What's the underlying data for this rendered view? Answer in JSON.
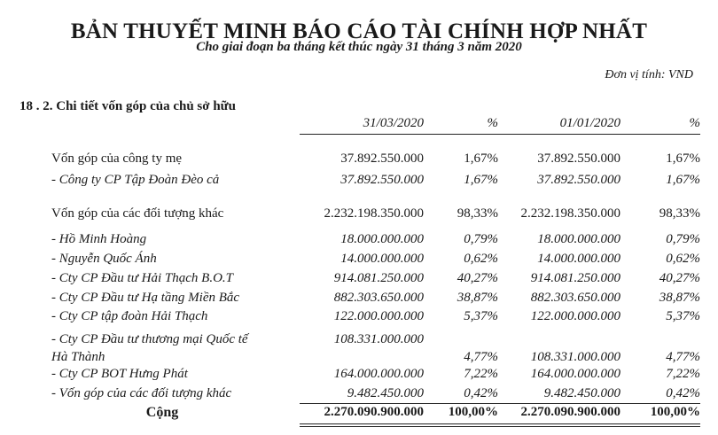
{
  "title": "BẢN THUYẾT MINH BÁO CÁO TÀI CHÍNH HỢP NHẤT",
  "subtitle": "Cho giai đoạn ba tháng kết thúc ngày 31 tháng 3 năm 2020",
  "unit": "Đơn vị tính: VND",
  "section": "18 .  2. Chi tiết vốn góp của chủ sở hữu",
  "headers": {
    "date1": "31/03/2020",
    "pct1": "%",
    "date2": "01/01/2020",
    "pct2": "%"
  },
  "rows": [
    {
      "label": "Vốn góp của công ty mẹ",
      "v1": "37.892.550.000",
      "p1": "1,67%",
      "v2": "37.892.550.000",
      "p2": "1,67%",
      "style": "main"
    },
    {
      "label": "- Công ty CP Tập Đoàn Đèo cả",
      "v1": "37.892.550.000",
      "p1": "1,67%",
      "v2": "37.892.550.000",
      "p2": "1,67%",
      "style": "sub"
    },
    {
      "label": "Vốn góp của các đối tượng khác",
      "v1": "2.232.198.350.000",
      "p1": "98,33%",
      "v2": "2.232.198.350.000",
      "p2": "98,33%",
      "style": "main"
    },
    {
      "label": "- Hồ Minh Hoàng",
      "v1": "18.000.000.000",
      "p1": "0,79%",
      "v2": "18.000.000.000",
      "p2": "0,79%",
      "style": "sub"
    },
    {
      "label": "- Nguyễn Quốc Ánh",
      "v1": "14.000.000.000",
      "p1": "0,62%",
      "v2": "14.000.000.000",
      "p2": "0,62%",
      "style": "sub"
    },
    {
      "label": "- Cty CP Đầu tư Hải Thạch B.O.T",
      "v1": "914.081.250.000",
      "p1": "40,27%",
      "v2": "914.081.250.000",
      "p2": "40,27%",
      "style": "sub"
    },
    {
      "label": "- Cty CP Đầu tư Hạ tầng Miền Bắc",
      "v1": "882.303.650.000",
      "p1": "38,87%",
      "v2": "882.303.650.000",
      "p2": "38,87%",
      "style": "sub"
    },
    {
      "label": "- Cty CP tập đoàn Hải Thạch",
      "v1": "122.000.000.000",
      "p1": "5,37%",
      "v2": "122.000.000.000",
      "p2": "5,37%",
      "style": "sub"
    },
    {
      "label": "- Cty CP Đầu tư thương mại Quốc tế",
      "label2": "Hà Thành",
      "v1": "108.331.000.000",
      "p1": "4,77%",
      "v2": "108.331.000.000",
      "p2": "4,77%",
      "style": "sub2"
    },
    {
      "label": "- Cty CP BOT Hưng Phát",
      "v1": "164.000.000.000",
      "p1": "7,22%",
      "v2": "164.000.000.000",
      "p2": "7,22%",
      "style": "sub"
    },
    {
      "label": "- Vốn góp của các đối tượng khác",
      "v1": "9.482.450.000",
      "p1": "0,42%",
      "v2": "9.482.450.000",
      "p2": "0,42%",
      "style": "sub"
    },
    {
      "label": "Cộng",
      "v1": "2.270.090.900.000",
      "p1": "100,00%",
      "v2": "2.270.090.900.000",
      "p2": "100,00%",
      "style": "total"
    }
  ]
}
